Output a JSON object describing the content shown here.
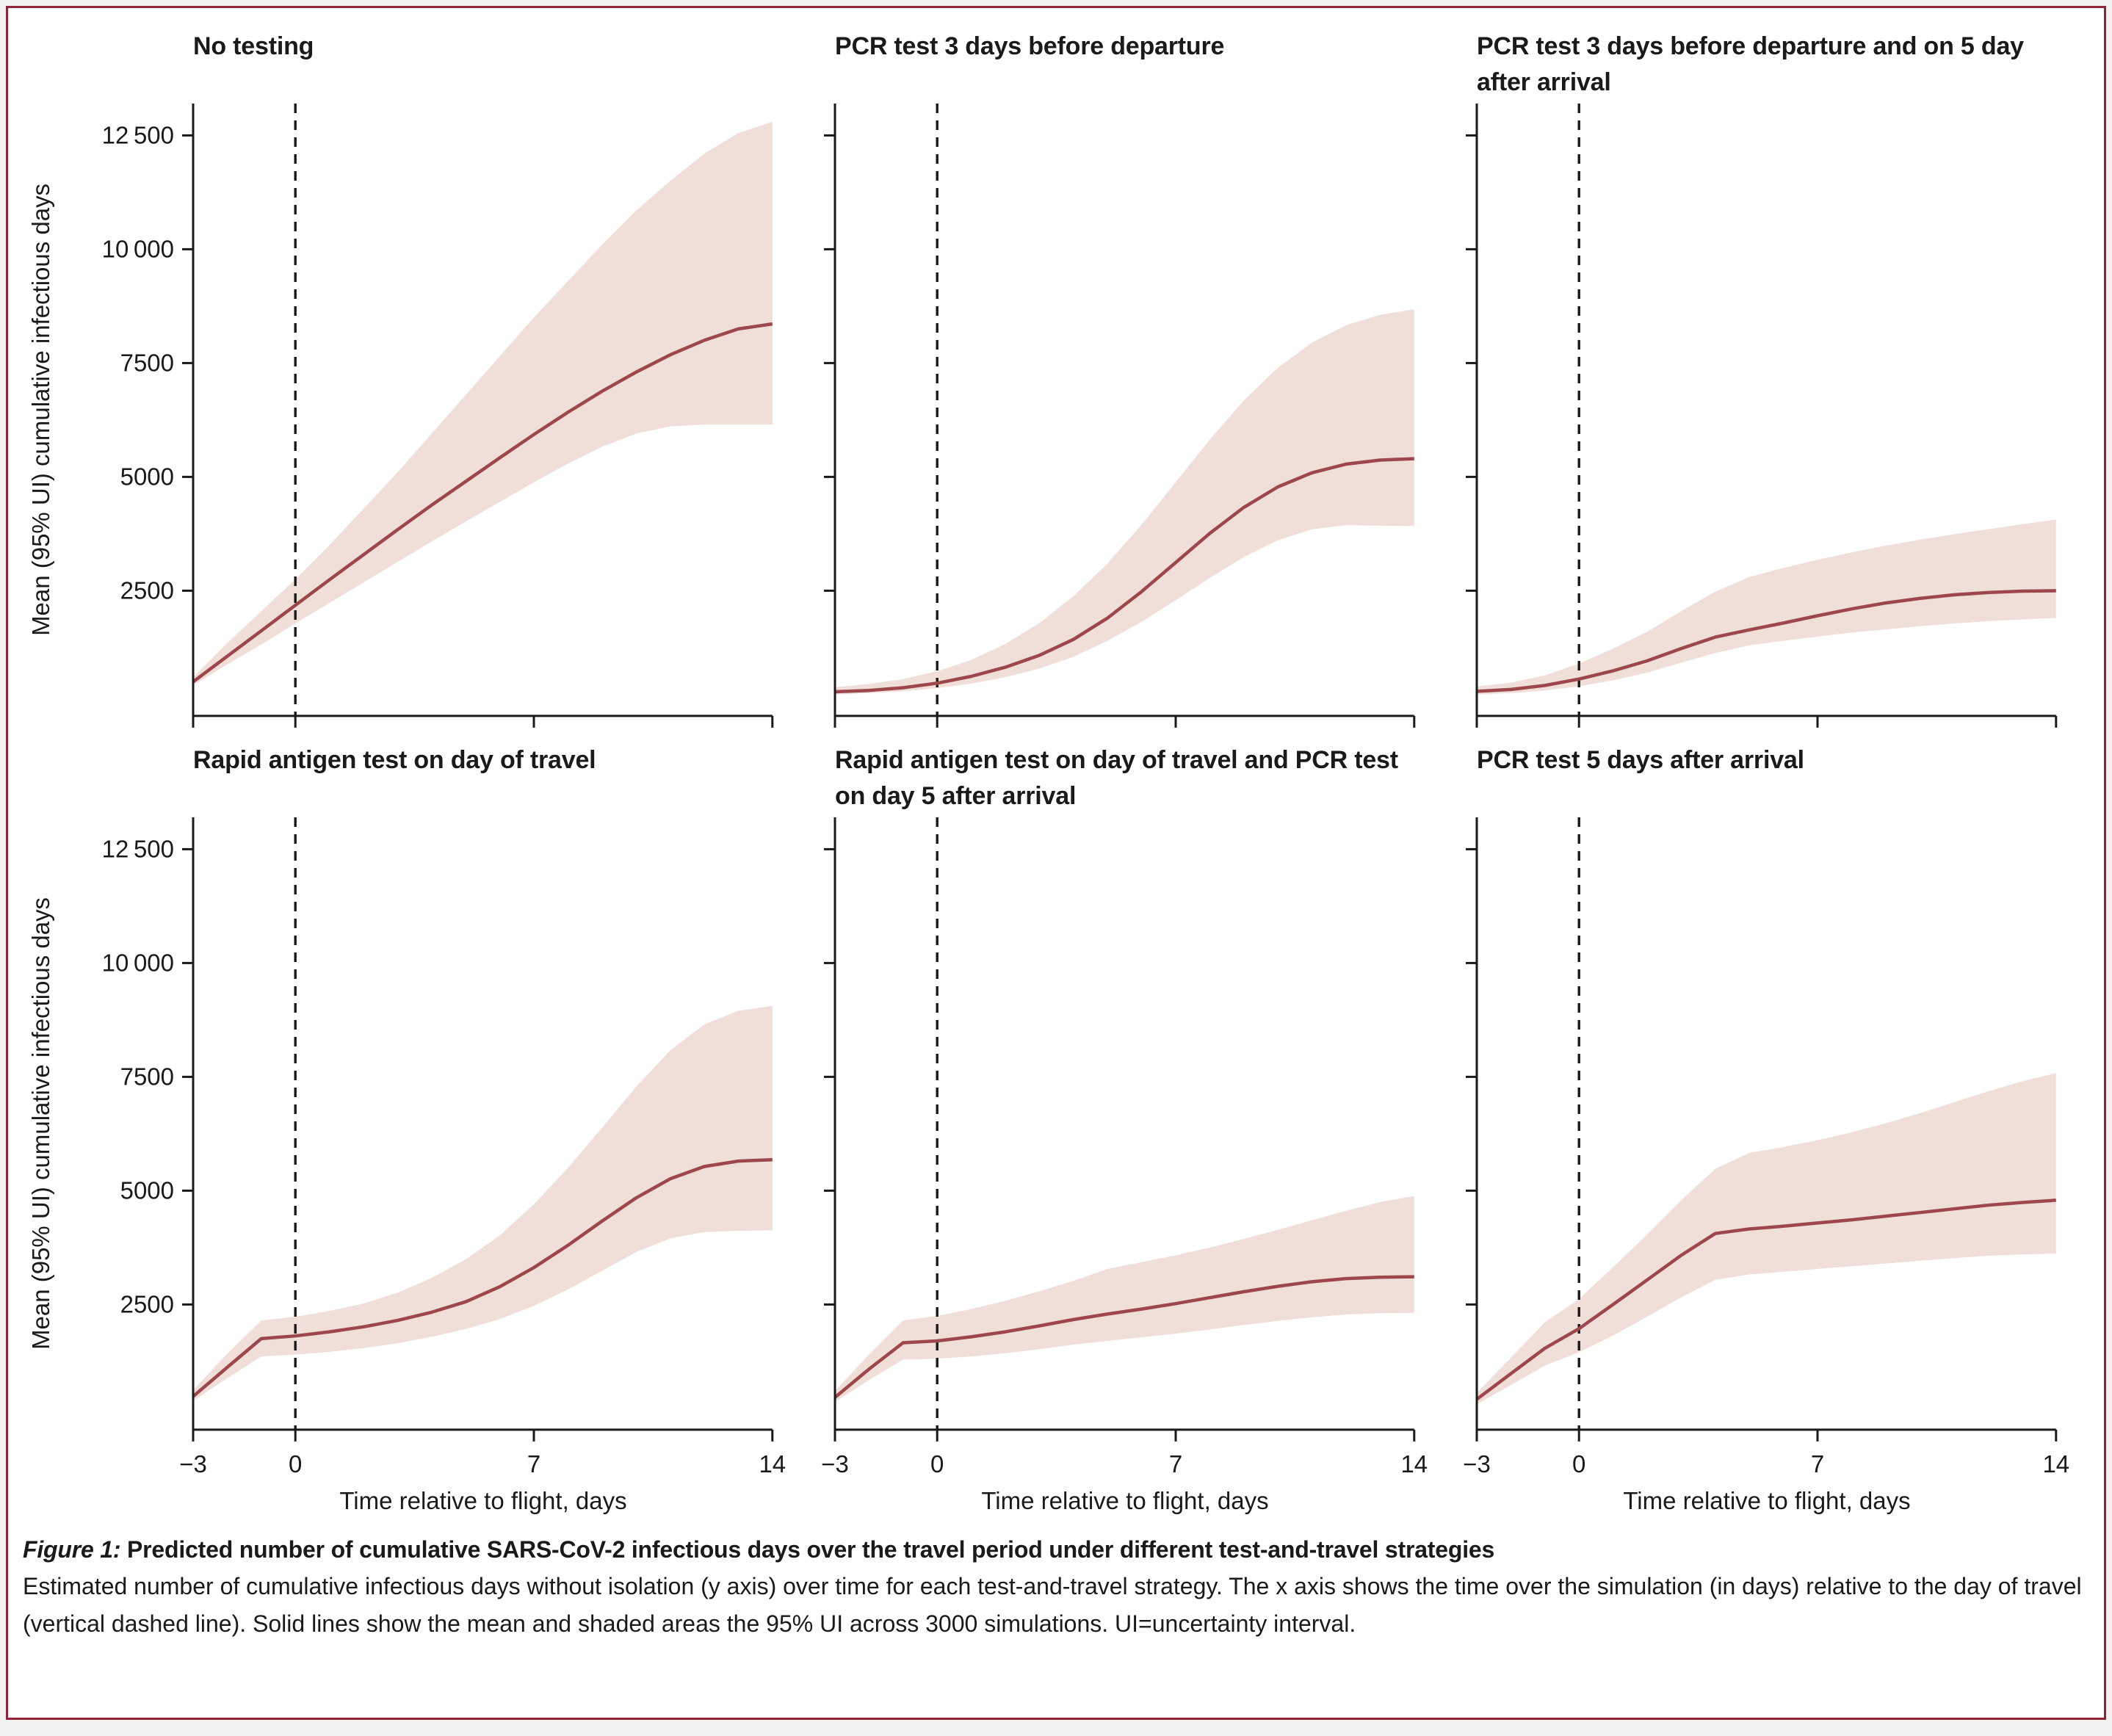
{
  "figure": {
    "caption_label": "Figure 1:",
    "caption_title": " Predicted number of cumulative SARS-CoV-2 infectious days over the travel period under different test-and-travel strategies",
    "caption_body": "Estimated number of cumulative infectious days without isolation (y axis) over time for each test-and-travel strategy. The x axis shows the time over the simulation (in days) relative to the day of travel (vertical dashed line). Solid lines show the mean and shaded areas the 95% UI across 3000 simulations. UI=uncertainty interval."
  },
  "colors": {
    "mean_line": "#9d464c",
    "band": "#f0ded8",
    "axis": "#1a1a1a",
    "border": "#8f2439",
    "page_background": "#f3f2f0"
  },
  "axes": {
    "ylabel": "Mean (95% UI) cumulative infectious days",
    "xlabel": "Time relative to flight, days",
    "x_range": [
      -3,
      14
    ],
    "y_range": [
      -250,
      13200
    ],
    "dashed_line_x": 0,
    "grid": "off",
    "y_ticks": [
      {
        "v": 2500,
        "label": "2500"
      },
      {
        "v": 5000,
        "label": "5000"
      },
      {
        "v": 7500,
        "label": "7500"
      },
      {
        "v": 10000,
        "label": "10 000"
      },
      {
        "v": 12500,
        "label": "12 500"
      }
    ],
    "x_ticks": [
      {
        "v": -3,
        "label": "−3"
      },
      {
        "v": 0,
        "label": "0"
      },
      {
        "v": 7,
        "label": "7"
      },
      {
        "v": 14,
        "label": "14"
      }
    ]
  },
  "chart_data": [
    {
      "type": "line",
      "id": "no-testing",
      "title": "No testing",
      "show_y_labels": true,
      "show_x_labels": false,
      "x": [
        -3,
        -2,
        -1,
        0,
        1,
        2,
        3,
        4,
        5,
        6,
        7,
        8,
        9,
        10,
        11,
        12,
        13,
        14
      ],
      "series": [
        {
          "name": "mean",
          "values": [
            500,
            1060,
            1620,
            2180,
            2740,
            3290,
            3840,
            4380,
            4900,
            5420,
            5930,
            6420,
            6880,
            7300,
            7680,
            8000,
            8250,
            8360
          ]
        },
        {
          "name": "upper_95ui",
          "values": [
            600,
            1350,
            2050,
            2750,
            3500,
            4300,
            5100,
            5950,
            6800,
            7650,
            8500,
            9300,
            10100,
            10850,
            11500,
            12100,
            12550,
            12800
          ]
        },
        {
          "name": "lower_95ui",
          "values": [
            420,
            880,
            1320,
            1780,
            2230,
            2680,
            3130,
            3580,
            4020,
            4450,
            4880,
            5290,
            5660,
            5950,
            6110,
            6150,
            6150,
            6150
          ]
        }
      ]
    },
    {
      "type": "line",
      "id": "pcr-3-days-before-departure",
      "title": "PCR test 3 days before departure",
      "show_y_labels": false,
      "show_x_labels": false,
      "x": [
        -3,
        -2,
        -1,
        0,
        1,
        2,
        3,
        4,
        5,
        6,
        7,
        8,
        9,
        10,
        11,
        12,
        13,
        14
      ],
      "series": [
        {
          "name": "mean",
          "values": [
            280,
            310,
            370,
            470,
            620,
            820,
            1080,
            1430,
            1900,
            2480,
            3120,
            3760,
            4330,
            4780,
            5090,
            5280,
            5370,
            5400
          ]
        },
        {
          "name": "upper_95ui",
          "values": [
            380,
            450,
            560,
            730,
            980,
            1330,
            1790,
            2380,
            3100,
            3950,
            4880,
            5820,
            6680,
            7400,
            7950,
            8330,
            8560,
            8680
          ]
        },
        {
          "name": "lower_95ui",
          "values": [
            220,
            250,
            290,
            360,
            460,
            600,
            790,
            1050,
            1400,
            1820,
            2290,
            2780,
            3240,
            3610,
            3850,
            3940,
            3930,
            3920
          ]
        }
      ]
    },
    {
      "type": "line",
      "id": "pcr-3-days-before-and-day-5-after",
      "title": "PCR test 3 days before departure and on 5 day after arrival",
      "show_y_labels": false,
      "show_x_labels": false,
      "x": [
        -3,
        -2,
        -1,
        0,
        1,
        2,
        3,
        4,
        5,
        6,
        7,
        8,
        9,
        10,
        11,
        12,
        13,
        14
      ],
      "series": [
        {
          "name": "mean",
          "values": [
            290,
            330,
            420,
            560,
            740,
            960,
            1230,
            1480,
            1640,
            1790,
            1950,
            2100,
            2230,
            2330,
            2410,
            2460,
            2490,
            2500
          ]
        },
        {
          "name": "upper_95ui",
          "values": [
            400,
            480,
            640,
            900,
            1230,
            1600,
            2050,
            2480,
            2800,
            3000,
            3180,
            3340,
            3490,
            3620,
            3740,
            3850,
            3960,
            4060
          ]
        },
        {
          "name": "lower_95ui",
          "values": [
            220,
            250,
            310,
            400,
            530,
            700,
            920,
            1130,
            1300,
            1400,
            1490,
            1580,
            1650,
            1720,
            1780,
            1830,
            1870,
            1900
          ]
        }
      ]
    },
    {
      "type": "line",
      "id": "rapid-antigen-day-of-travel",
      "title": "Rapid antigen test on day of travel",
      "show_y_labels": true,
      "show_x_labels": true,
      "x": [
        -3,
        -2,
        -1,
        0,
        1,
        2,
        3,
        4,
        5,
        6,
        7,
        8,
        9,
        10,
        11,
        12,
        13,
        14
      ],
      "series": [
        {
          "name": "mean",
          "values": [
            480,
            1120,
            1750,
            1810,
            1900,
            2010,
            2150,
            2330,
            2560,
            2890,
            3310,
            3800,
            4330,
            4840,
            5260,
            5530,
            5650,
            5680
          ]
        },
        {
          "name": "upper_95ui",
          "values": [
            620,
            1420,
            2150,
            2230,
            2360,
            2520,
            2760,
            3080,
            3490,
            4020,
            4700,
            5500,
            6380,
            7280,
            8080,
            8650,
            8950,
            9060
          ]
        },
        {
          "name": "lower_95ui",
          "values": [
            380,
            880,
            1360,
            1400,
            1460,
            1540,
            1650,
            1790,
            1960,
            2180,
            2470,
            2830,
            3240,
            3650,
            3950,
            4090,
            4120,
            4130
          ]
        }
      ]
    },
    {
      "type": "line",
      "id": "rapid-antigen-and-pcr-day-5",
      "title": "Rapid antigen test on day of travel and PCR test on day 5 after arrival",
      "show_y_labels": false,
      "show_x_labels": true,
      "x": [
        -3,
        -2,
        -1,
        0,
        1,
        2,
        3,
        4,
        5,
        6,
        7,
        8,
        9,
        10,
        11,
        12,
        13,
        14
      ],
      "series": [
        {
          "name": "mean",
          "values": [
            460,
            1080,
            1660,
            1700,
            1790,
            1900,
            2030,
            2170,
            2290,
            2400,
            2520,
            2650,
            2780,
            2900,
            3000,
            3070,
            3100,
            3110
          ]
        },
        {
          "name": "upper_95ui",
          "values": [
            600,
            1400,
            2150,
            2250,
            2400,
            2580,
            2790,
            3020,
            3280,
            3430,
            3580,
            3750,
            3940,
            4140,
            4350,
            4560,
            4750,
            4880
          ]
        },
        {
          "name": "lower_95ui",
          "values": [
            360,
            840,
            1290,
            1310,
            1360,
            1430,
            1520,
            1620,
            1700,
            1780,
            1860,
            1950,
            2050,
            2140,
            2220,
            2280,
            2310,
            2320
          ]
        }
      ]
    },
    {
      "type": "line",
      "id": "pcr-5-days-after-arrival",
      "title": "PCR test 5 days after arrival",
      "show_y_labels": false,
      "show_x_labels": true,
      "x": [
        -3,
        -2,
        -1,
        0,
        1,
        2,
        3,
        4,
        5,
        6,
        7,
        8,
        9,
        10,
        11,
        12,
        13,
        14
      ],
      "series": [
        {
          "name": "mean",
          "values": [
            420,
            980,
            1540,
            1970,
            2500,
            3040,
            3580,
            4060,
            4160,
            4220,
            4290,
            4360,
            4440,
            4520,
            4600,
            4680,
            4740,
            4790
          ]
        },
        {
          "name": "upper_95ui",
          "values": [
            560,
            1330,
            2110,
            2620,
            3320,
            4040,
            4790,
            5480,
            5830,
            5960,
            6110,
            6280,
            6480,
            6700,
            6940,
            7180,
            7400,
            7580
          ]
        },
        {
          "name": "lower_95ui",
          "values": [
            310,
            730,
            1160,
            1450,
            1820,
            2230,
            2660,
            3040,
            3160,
            3220,
            3280,
            3340,
            3400,
            3460,
            3520,
            3570,
            3600,
            3620
          ]
        }
      ]
    }
  ]
}
